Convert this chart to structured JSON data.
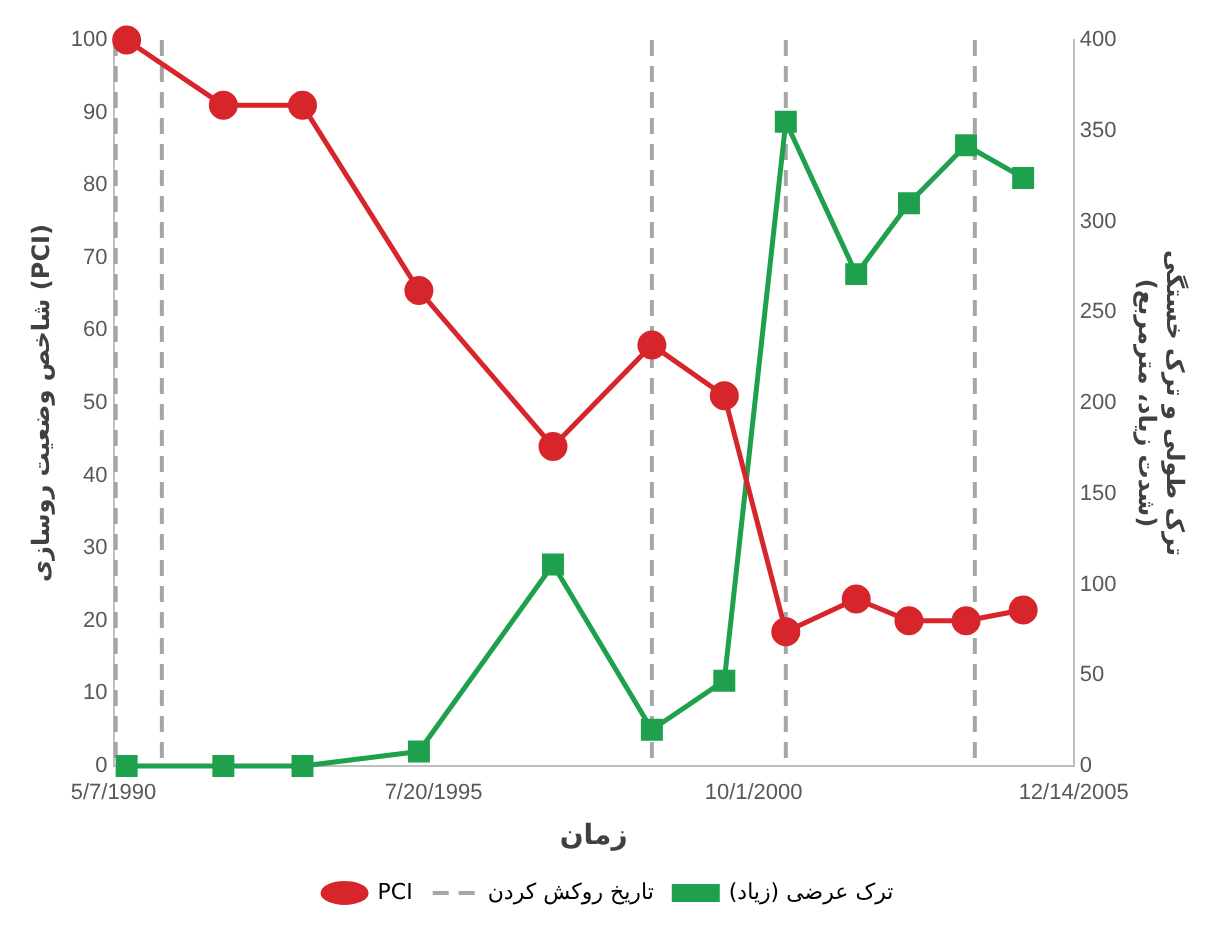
{
  "chart_data": {
    "type": "line",
    "xlabel": "زمان",
    "ylabel": "شاخص وضعیت روسازی (PCI)",
    "y2label": "ترک طولی و ترک خستگی\n(شدت زیاد، مترمربع)",
    "x": [
      "1990-07-24",
      "1992-02-18",
      "1993-06-02",
      "1995-04-24",
      "1997-06-28",
      "1999-02-05",
      "2000-04-10",
      "2001-04-10",
      "2002-06-02",
      "2003-04-11",
      "2004-03-15",
      "2005-02-17"
    ],
    "series": [
      {
        "name": "PCI",
        "color": "#d7262b",
        "marker": "circle",
        "values": [
          100,
          91,
          91,
          65.5,
          44,
          58,
          51,
          18.5,
          23,
          20,
          20,
          21.5
        ]
      },
      {
        "name": "ترک عرضی (زیاد)",
        "color": "#1ea04c",
        "marker": "square",
        "axis": "y2",
        "values": [
          0,
          0,
          0,
          8,
          111,
          20,
          47,
          355,
          271,
          310,
          342,
          324
        ]
      }
    ],
    "xlim": [
      "1990-05-07",
      "2005-12-14"
    ],
    "xticks": [
      {
        "value": "1990-05-07",
        "label": "5/7/1990"
      },
      {
        "value": "1995-07-20",
        "label": "7/20/1995"
      },
      {
        "value": "2000-10-01",
        "label": "10/1/2000"
      },
      {
        "value": "2005-12-14",
        "label": "12/14/2005"
      }
    ],
    "ylim": [
      0,
      100
    ],
    "yticks": [
      0,
      10,
      20,
      30,
      40,
      50,
      60,
      70,
      80,
      90,
      100
    ],
    "y2lim": [
      0,
      400
    ],
    "y2ticks": [
      0,
      50,
      100,
      150,
      200,
      250,
      300,
      350,
      400
    ],
    "ref_lines": [
      {
        "axis": "x",
        "value": "1990-05-20",
        "label": "تاریخ روکش کردن",
        "color": "#a6a6a6",
        "line_style": "dashed"
      },
      {
        "axis": "x",
        "value": "1991-02-18",
        "label": null,
        "color": "#a6a6a6",
        "line_style": "dashed"
      },
      {
        "axis": "x",
        "value": "1999-02-05",
        "label": null,
        "color": "#a6a6a6",
        "line_style": "dashed"
      },
      {
        "axis": "x",
        "value": "2001-04-10",
        "label": null,
        "color": "#a6a6a6",
        "line_style": "dashed"
      },
      {
        "axis": "x",
        "value": "2004-05-06",
        "label": null,
        "color": "#a6a6a6",
        "line_style": "dashed"
      }
    ],
    "grid": false,
    "legend": "bottom",
    "line_style": "solid"
  }
}
